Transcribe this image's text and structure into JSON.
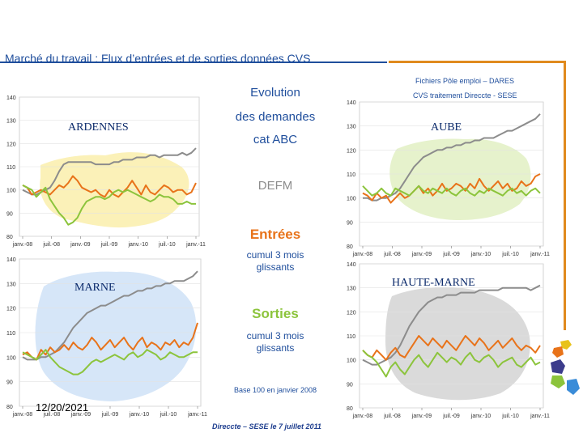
{
  "header": {
    "title": "Marché du travail : Flux d’entrées et de sorties données CVS",
    "source_line1": "Fichiers Pôle emploi – DARES",
    "source_line2": "CVS traitement Direccte - SESE"
  },
  "legend": {
    "line1": "Evolution",
    "line2": "des demandes",
    "line3": "cat ABC",
    "line4": "DEFM",
    "entrees": "Entrées",
    "cumul1": "cumul 3 mois glissants",
    "sorties": "Sorties",
    "cumul2": "cumul 3 mois glissants",
    "base": "Base 100 en janvier 2008"
  },
  "footer": {
    "date": "12/20/2021",
    "credit": "Direccte – SESE le 7 juillet 2011"
  },
  "colors": {
    "defm": "#8c8c8c",
    "entrees": "#e8731a",
    "sorties": "#8cc43c",
    "accent": "#1f4e9c",
    "bracket": "#e08a1e"
  },
  "chart_data": [
    {
      "type": "line",
      "region": "ARDENNES",
      "x_labels": [
        "janv.-08",
        "juil.-08",
        "janv.-09",
        "juil.-09",
        "janv.-10",
        "juil.-10",
        "janv.-11"
      ],
      "yticks": [
        "80",
        "90",
        "100",
        "110",
        "120",
        "130",
        "140"
      ],
      "ylim": [
        80,
        140
      ],
      "series": [
        {
          "key": "defm",
          "values": [
            100,
            99,
            98,
            98,
            99,
            100,
            101,
            104,
            108,
            111,
            112,
            112,
            112,
            112,
            112,
            112,
            111,
            111,
            111,
            111,
            112,
            112,
            113,
            113,
            113,
            114,
            114,
            114,
            115,
            115,
            114,
            115,
            115,
            115,
            115,
            116,
            115,
            116,
            118
          ]
        },
        {
          "key": "entrees",
          "values": [
            102,
            101,
            98,
            99,
            100,
            99,
            98,
            100,
            102,
            101,
            103,
            106,
            104,
            101,
            100,
            99,
            100,
            98,
            97,
            100,
            98,
            97,
            99,
            101,
            104,
            101,
            98,
            102,
            99,
            98,
            100,
            102,
            101,
            99,
            100,
            100,
            98,
            99,
            103
          ]
        },
        {
          "key": "sorties",
          "values": [
            102,
            101,
            100,
            97,
            99,
            101,
            96,
            93,
            90,
            88,
            85,
            86,
            88,
            92,
            95,
            96,
            97,
            97,
            96,
            97,
            99,
            100,
            99,
            100,
            99,
            98,
            97,
            96,
            95,
            96,
            98,
            97,
            97,
            96,
            94,
            94,
            95,
            94,
            94
          ]
        }
      ]
    },
    {
      "type": "line",
      "region": "AUBE",
      "x_labels": [
        "janv.-08",
        "juil.-08",
        "janv.-09",
        "juil.-09",
        "janv.-10",
        "juil.-10",
        "janv.-11"
      ],
      "yticks": [
        "80",
        "90",
        "100",
        "110",
        "120",
        "130",
        "140"
      ],
      "ylim": [
        80,
        140
      ],
      "series": [
        {
          "key": "defm",
          "values": [
            100,
            100,
            99,
            99,
            100,
            100,
            101,
            102,
            104,
            107,
            110,
            113,
            115,
            117,
            118,
            119,
            120,
            120,
            121,
            121,
            122,
            122,
            123,
            123,
            124,
            124,
            125,
            125,
            125,
            126,
            127,
            128,
            128,
            129,
            130,
            131,
            132,
            133,
            135
          ]
        },
        {
          "key": "entrees",
          "values": [
            102,
            101,
            99,
            102,
            100,
            101,
            98,
            100,
            102,
            100,
            101,
            103,
            105,
            102,
            104,
            101,
            103,
            106,
            103,
            104,
            106,
            105,
            103,
            106,
            104,
            108,
            105,
            103,
            105,
            107,
            104,
            106,
            103,
            104,
            107,
            105,
            106,
            109,
            110
          ]
        },
        {
          "key": "sorties",
          "values": [
            105,
            103,
            101,
            102,
            104,
            102,
            101,
            104,
            103,
            102,
            101,
            103,
            105,
            103,
            102,
            104,
            103,
            102,
            104,
            102,
            101,
            103,
            104,
            102,
            101,
            103,
            102,
            104,
            103,
            102,
            101,
            103,
            104,
            102,
            103,
            101,
            103,
            104,
            102
          ]
        }
      ]
    },
    {
      "type": "line",
      "region": "MARNE",
      "x_labels": [
        "janv.-08",
        "juil.-08",
        "janv.-09",
        "juil.-09",
        "janv.-10",
        "juil.-10",
        "janv.-11"
      ],
      "yticks": [
        "80",
        "90",
        "100",
        "110",
        "120",
        "130",
        "140"
      ],
      "ylim": [
        80,
        140
      ],
      "series": [
        {
          "key": "defm",
          "values": [
            100,
            99,
            99,
            99,
            100,
            100,
            101,
            102,
            104,
            106,
            109,
            112,
            114,
            116,
            118,
            119,
            120,
            121,
            121,
            122,
            123,
            124,
            125,
            125,
            126,
            127,
            127,
            128,
            128,
            129,
            129,
            130,
            130,
            131,
            131,
            131,
            132,
            133,
            135
          ]
        },
        {
          "key": "entrees",
          "values": [
            101,
            102,
            100,
            99,
            103,
            101,
            104,
            102,
            103,
            105,
            103,
            106,
            104,
            103,
            105,
            108,
            106,
            103,
            105,
            107,
            104,
            106,
            108,
            105,
            103,
            106,
            108,
            104,
            106,
            105,
            103,
            106,
            105,
            107,
            104,
            106,
            105,
            108,
            114
          ]
        },
        {
          "key": "sorties",
          "values": [
            102,
            101,
            100,
            99,
            101,
            103,
            100,
            98,
            96,
            95,
            94,
            93,
            93,
            94,
            96,
            98,
            99,
            98,
            99,
            100,
            101,
            100,
            99,
            101,
            102,
            100,
            101,
            103,
            102,
            101,
            99,
            100,
            102,
            101,
            100,
            100,
            101,
            102,
            102
          ]
        }
      ]
    },
    {
      "type": "line",
      "region": "HAUTE-MARNE",
      "x_labels": [
        "janv.-08",
        "juil.-08",
        "janv.-09",
        "juil.-09",
        "janv.-10",
        "juil.-10",
        "janv.-11"
      ],
      "yticks": [
        "80",
        "90",
        "100",
        "110",
        "120",
        "130",
        "140"
      ],
      "ylim": [
        80,
        140
      ],
      "series": [
        {
          "key": "defm",
          "values": [
            100,
            99,
            98,
            98,
            99,
            100,
            101,
            103,
            106,
            110,
            114,
            117,
            120,
            122,
            124,
            125,
            126,
            126,
            127,
            127,
            127,
            128,
            128,
            128,
            128,
            129,
            129,
            129,
            129,
            129,
            130,
            130,
            130,
            130,
            130,
            130,
            129,
            130,
            131
          ]
        },
        {
          "key": "entrees",
          "values": [
            104,
            102,
            101,
            104,
            102,
            100,
            103,
            105,
            102,
            101,
            104,
            107,
            110,
            108,
            106,
            109,
            107,
            105,
            108,
            106,
            104,
            107,
            110,
            108,
            106,
            109,
            107,
            104,
            106,
            108,
            105,
            107,
            109,
            106,
            104,
            106,
            105,
            103,
            106
          ]
        },
        {
          "key": "sorties",
          "values": [
            104,
            102,
            101,
            99,
            96,
            93,
            97,
            99,
            96,
            94,
            97,
            100,
            102,
            99,
            97,
            100,
            103,
            101,
            99,
            101,
            100,
            98,
            101,
            103,
            100,
            99,
            101,
            102,
            100,
            97,
            99,
            100,
            101,
            98,
            97,
            99,
            101,
            98,
            99
          ]
        }
      ]
    }
  ]
}
